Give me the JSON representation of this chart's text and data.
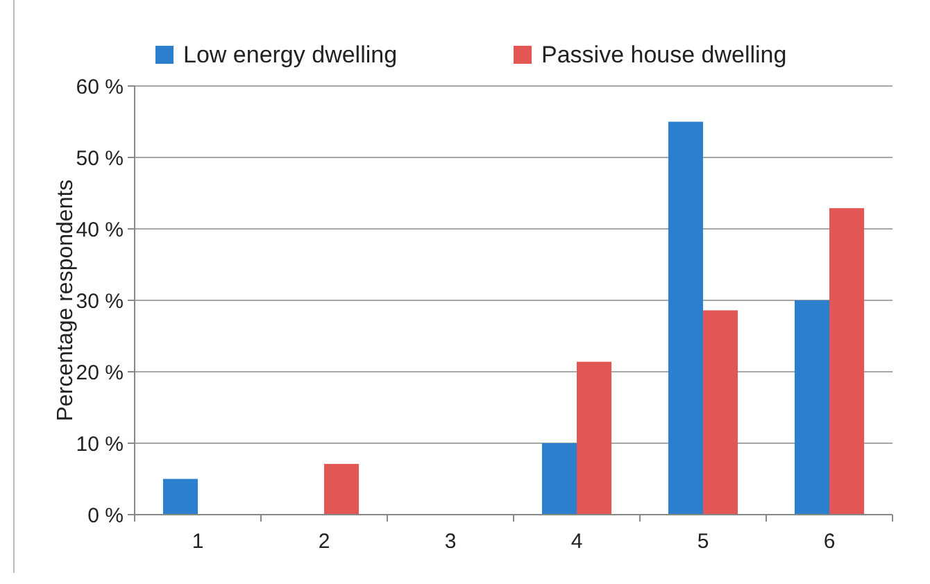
{
  "chart_data": {
    "type": "bar",
    "ylabel": "Percentage respondents",
    "categories": [
      "1",
      "2",
      "3",
      "4",
      "5",
      "6"
    ],
    "series": [
      {
        "name": "Low energy dwelling",
        "color": "#2b7fcc",
        "values": [
          5,
          0,
          0,
          10,
          55,
          30
        ]
      },
      {
        "name": "Passive house dwelling",
        "color": "#e35656",
        "values": [
          0,
          7.1,
          0,
          21.4,
          28.6,
          42.9
        ]
      }
    ],
    "ylim": [
      0,
      60
    ],
    "yticks": [
      {
        "value": 0,
        "label": "0 %"
      },
      {
        "value": 10,
        "label": "10 %"
      },
      {
        "value": 20,
        "label": "20 %"
      },
      {
        "value": 30,
        "label": "30 %"
      },
      {
        "value": 40,
        "label": "40 %"
      },
      {
        "value": 50,
        "label": "50 %"
      },
      {
        "value": 60,
        "label": "60 %"
      }
    ],
    "grid": "y",
    "legend": "top"
  }
}
